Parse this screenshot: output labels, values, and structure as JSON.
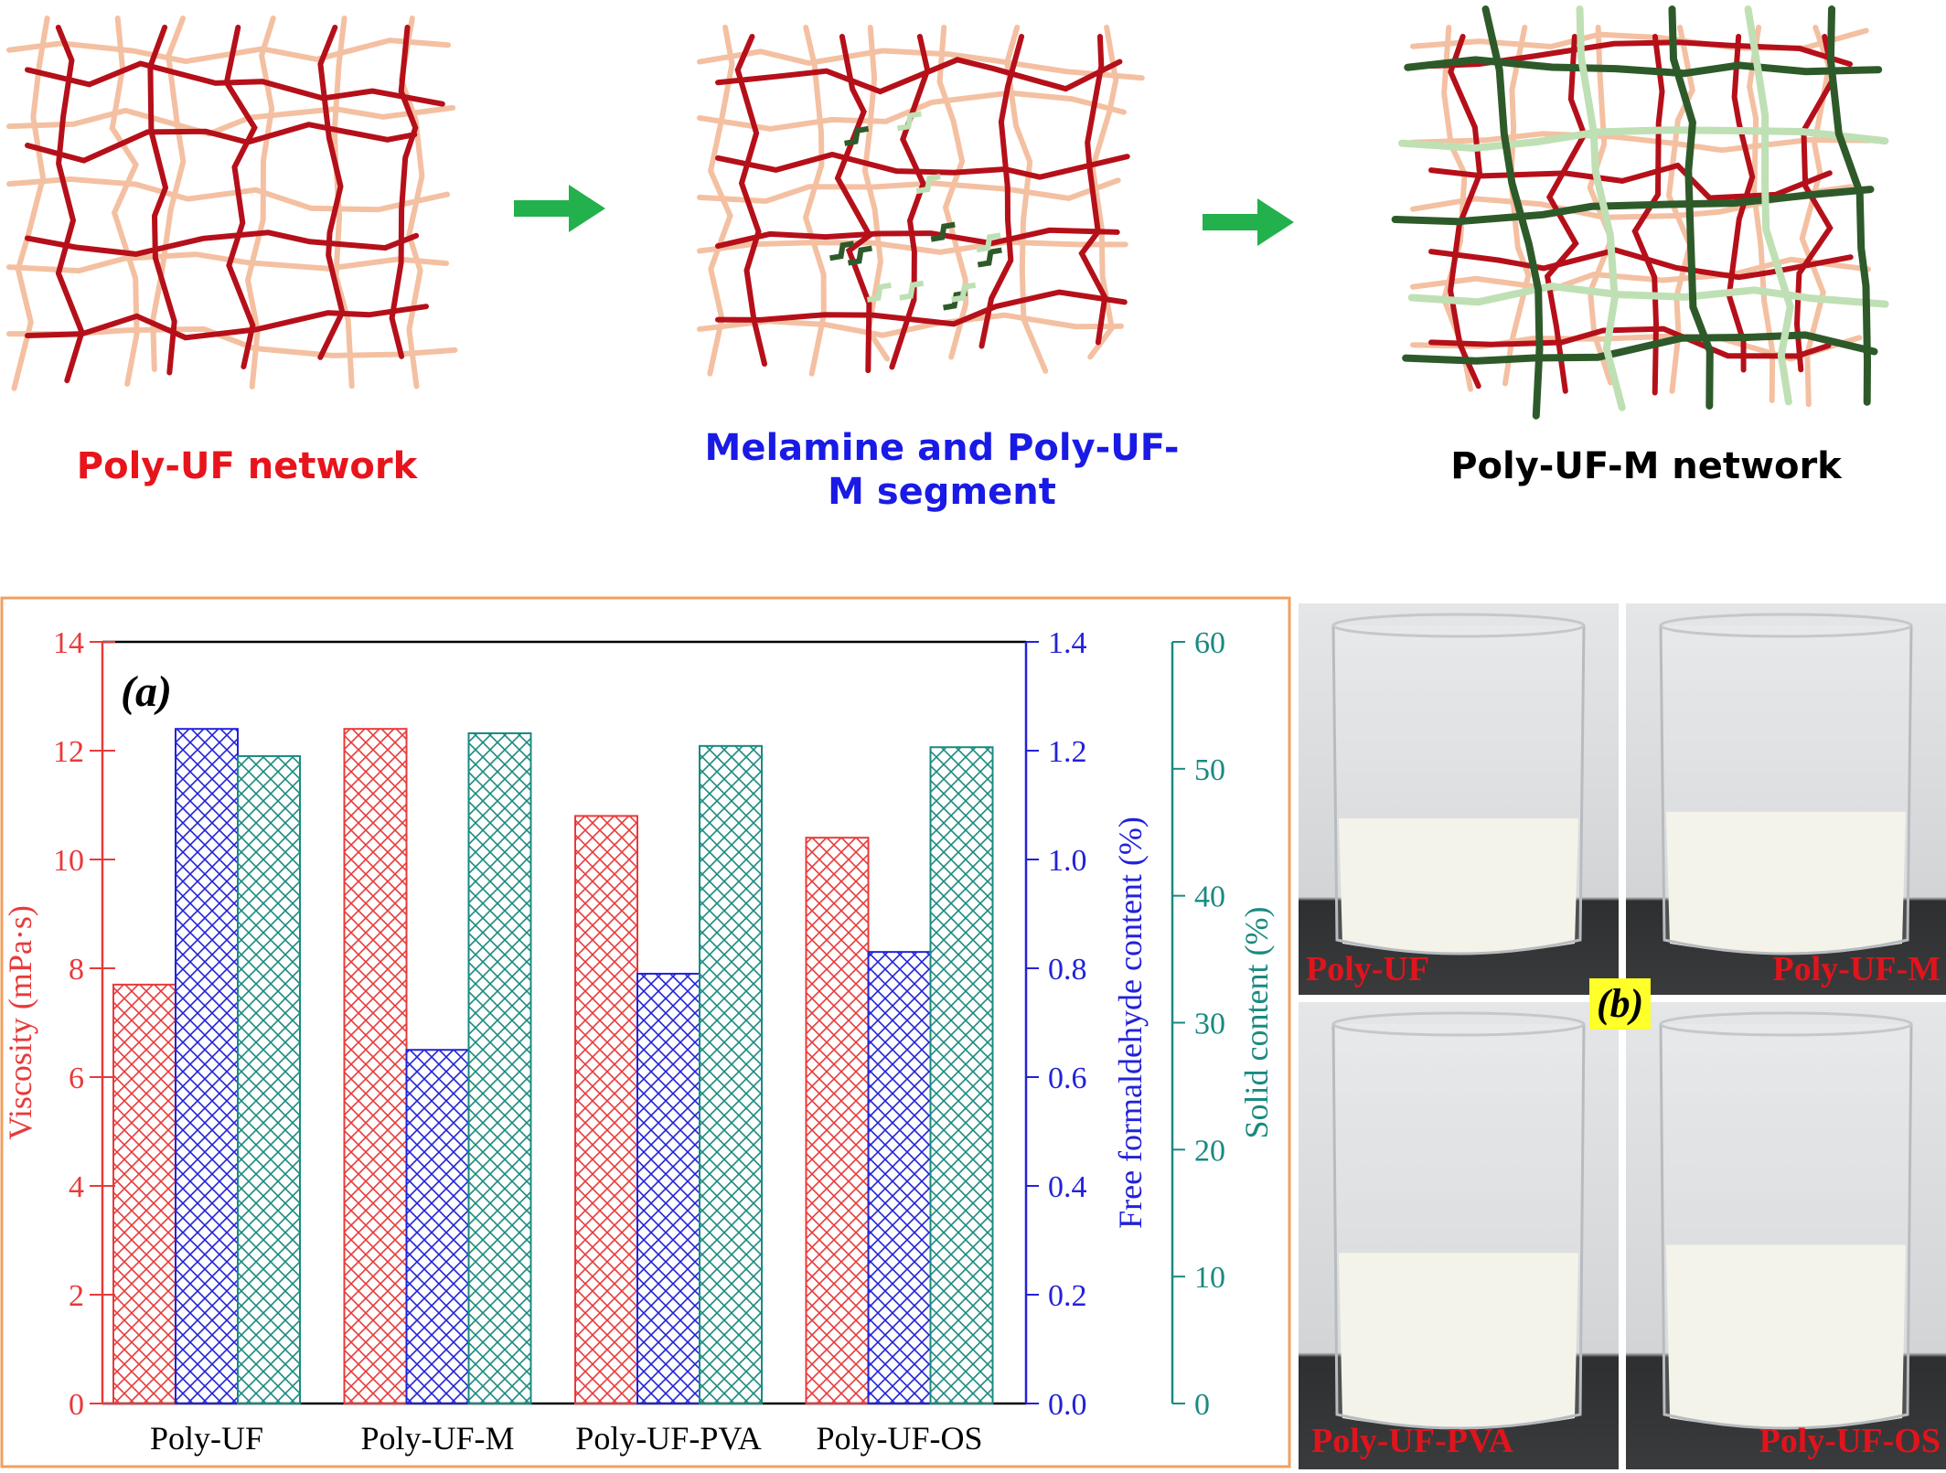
{
  "diagram": {
    "stages": [
      {
        "label": "Poly-UF network",
        "color": "#e8141c"
      },
      {
        "label": "Melamine and Poly-UF-M segment",
        "color": "#1a1ae6"
      },
      {
        "label": "Poly-UF-M network",
        "color": "#000000"
      }
    ],
    "colors": {
      "uf_dark": "#b5101a",
      "uf_light": "#f4c0a2",
      "m_dark": "#2e5a2a",
      "m_light": "#bfe0b4",
      "arrow": "#22b14c"
    }
  },
  "chart_data": {
    "type": "bar",
    "panel_label": "(a)",
    "categories": [
      "Poly-UF",
      "Poly-UF-M",
      "Poly-UF-PVA",
      "Poly-UF-OS"
    ],
    "series": [
      {
        "axis": "left",
        "color": "#e83a3a",
        "values": [
          7.7,
          12.4,
          10.8,
          10.4
        ]
      },
      {
        "axis": "right1",
        "color": "#2222d8",
        "values": [
          1.24,
          0.65,
          0.79,
          0.83
        ]
      },
      {
        "axis": "right2",
        "color": "#1a8a80",
        "values": [
          51.0,
          52.8,
          51.8,
          51.7
        ]
      }
    ],
    "axes": {
      "left": {
        "label": "Viscosity (mPa·s)",
        "min": 0,
        "max": 14,
        "ticks": [
          0,
          2,
          4,
          6,
          8,
          10,
          12,
          14
        ],
        "tick_labels": [
          "0",
          "2",
          "4",
          "6",
          "8",
          "10",
          "12",
          "14"
        ],
        "color": "#e83a3a"
      },
      "right1": {
        "label": "Free formaldehyde content (%)",
        "min": 0,
        "max": 1.4,
        "ticks": [
          0,
          0.2,
          0.4,
          0.6,
          0.8,
          1.0,
          1.2,
          1.4
        ],
        "tick_labels": [
          "0.0",
          "0.2",
          "0.4",
          "0.6",
          "0.8",
          "1.0",
          "1.2",
          "1.4"
        ],
        "color": "#2222d8"
      },
      "right2": {
        "label": "Solid content (%)",
        "min": 0,
        "max": 60,
        "ticks": [
          0,
          10,
          20,
          30,
          40,
          50,
          60
        ],
        "tick_labels": [
          "0",
          "10",
          "20",
          "30",
          "40",
          "50",
          "60"
        ],
        "color": "#1a8a80"
      }
    },
    "frame_color": "#f0a060"
  },
  "photos": {
    "panel_label": "(b)",
    "items": [
      {
        "label": "Poly-UF"
      },
      {
        "label": "Poly-UF-M"
      },
      {
        "label": "Poly-UF-PVA"
      },
      {
        "label": "Poly-UF-OS"
      }
    ]
  }
}
